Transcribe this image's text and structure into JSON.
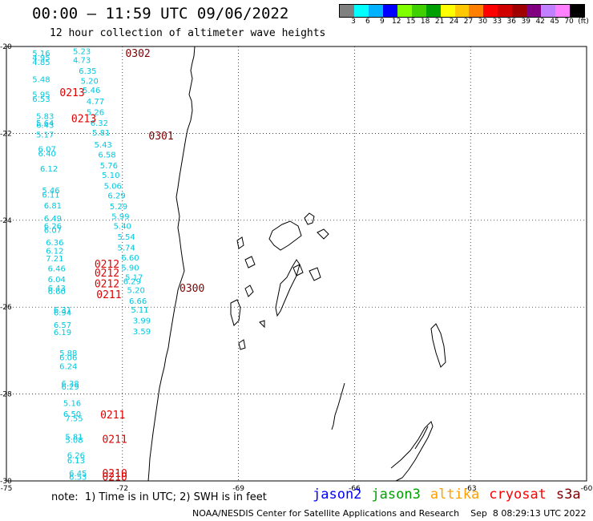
{
  "header": {
    "title": "00:00 – 11:59 UTC 09/06/2022",
    "subtitle": "12 hour collection of altimeter wave heights"
  },
  "colorbar": {
    "colors": [
      "#808080",
      "#00ffff",
      "#00b2ff",
      "#0000ff",
      "#80ff00",
      "#40d000",
      "#00a000",
      "#ffff00",
      "#ffc800",
      "#ff8000",
      "#ff0000",
      "#d00000",
      "#a00000",
      "#800080",
      "#c080ff",
      "#ff80ff",
      "#000000"
    ],
    "labels": [
      "3",
      "6",
      "9",
      "12",
      "15",
      "18",
      "21",
      "24",
      "27",
      "30",
      "33",
      "36",
      "39",
      "42",
      "45",
      "70"
    ],
    "unit": "(ft)"
  },
  "map": {
    "lon_range": [
      -75,
      -60
    ],
    "lat_range": [
      -30,
      -20
    ],
    "x_ticks": [
      "-75",
      "-72",
      "-69",
      "-66",
      "-63",
      "-60"
    ],
    "y_ticks": [
      "-20",
      "-22",
      "-24",
      "-26",
      "-28",
      "-30"
    ],
    "grid": "dotted",
    "wave_heights": [
      {
        "lat": -20.1,
        "lon": -73.05,
        "label": "5.23"
      },
      {
        "lat": -20.3,
        "lon": -73.05,
        "label": "4.73"
      },
      {
        "lat": -20.55,
        "lon": -72.9,
        "label": "6.35"
      },
      {
        "lat": -20.78,
        "lon": -72.85,
        "label": "5.20"
      },
      {
        "lat": -21.0,
        "lon": -72.8,
        "label": "5.46"
      },
      {
        "lat": -21.25,
        "lon": -72.7,
        "label": "4.77"
      },
      {
        "lat": -21.5,
        "lon": -72.7,
        "label": "5.26"
      },
      {
        "lat": -21.75,
        "lon": -72.6,
        "label": "6.32"
      },
      {
        "lat": -21.97,
        "lon": -72.55,
        "label": "5.81"
      },
      {
        "lat": -22.25,
        "lon": -72.5,
        "label": "5.43"
      },
      {
        "lat": -22.48,
        "lon": -72.4,
        "label": "6.58"
      },
      {
        "lat": -22.73,
        "lon": -72.35,
        "label": "5.76"
      },
      {
        "lat": -22.95,
        "lon": -72.3,
        "label": "5.10"
      },
      {
        "lat": -23.2,
        "lon": -72.25,
        "label": "5.06"
      },
      {
        "lat": -23.42,
        "lon": -72.15,
        "label": "6.29"
      },
      {
        "lat": -23.67,
        "lon": -72.1,
        "label": "5.29"
      },
      {
        "lat": -23.9,
        "lon": -72.05,
        "label": "5.99"
      },
      {
        "lat": -24.12,
        "lon": -72.0,
        "label": "5.40"
      },
      {
        "lat": -24.37,
        "lon": -71.9,
        "label": "5.54"
      },
      {
        "lat": -24.62,
        "lon": -71.9,
        "label": "5.74"
      },
      {
        "lat": -24.85,
        "lon": -71.8,
        "label": "6.60"
      },
      {
        "lat": -25.08,
        "lon": -71.8,
        "label": "5.90"
      },
      {
        "lat": -25.3,
        "lon": -71.7,
        "label": "5.17"
      },
      {
        "lat": -25.4,
        "lon": -71.75,
        "label": "6.29"
      },
      {
        "lat": -25.6,
        "lon": -71.65,
        "label": "5.20"
      },
      {
        "lat": -25.85,
        "lon": -71.6,
        "label": "6.66"
      },
      {
        "lat": -26.05,
        "lon": -71.55,
        "label": "5.11"
      },
      {
        "lat": -26.3,
        "lon": -71.5,
        "label": "3.99"
      },
      {
        "lat": -26.55,
        "lon": -71.5,
        "label": "3.59"
      },
      {
        "lat": -20.15,
        "lon": -74.1,
        "label": "5.16"
      },
      {
        "lat": -20.25,
        "lon": -74.1,
        "label": "4.95"
      },
      {
        "lat": -20.35,
        "lon": -74.1,
        "label": "4.85"
      },
      {
        "lat": -20.75,
        "lon": -74.1,
        "label": "5.48"
      },
      {
        "lat": -21.1,
        "lon": -74.1,
        "label": "5.95"
      },
      {
        "lat": -21.2,
        "lon": -74.1,
        "label": "6.53"
      },
      {
        "lat": -21.6,
        "lon": -74.0,
        "label": "5.83"
      },
      {
        "lat": -21.75,
        "lon": -74.0,
        "label": "5.64"
      },
      {
        "lat": -21.8,
        "lon": -74.0,
        "label": "6.43"
      },
      {
        "lat": -22.02,
        "lon": -74.0,
        "label": "5.17"
      },
      {
        "lat": -22.35,
        "lon": -73.95,
        "label": "6.07"
      },
      {
        "lat": -22.45,
        "lon": -73.95,
        "label": "6.40"
      },
      {
        "lat": -22.8,
        "lon": -73.9,
        "label": "6.12"
      },
      {
        "lat": -23.3,
        "lon": -73.85,
        "label": "5.46"
      },
      {
        "lat": -23.4,
        "lon": -73.85,
        "label": "6.11"
      },
      {
        "lat": -23.65,
        "lon": -73.8,
        "label": "6.81"
      },
      {
        "lat": -23.95,
        "lon": -73.8,
        "label": "6.49"
      },
      {
        "lat": -24.12,
        "lon": -73.8,
        "label": "6.26"
      },
      {
        "lat": -24.22,
        "lon": -73.8,
        "label": "6.07"
      },
      {
        "lat": -24.5,
        "lon": -73.75,
        "label": "6.36"
      },
      {
        "lat": -24.7,
        "lon": -73.75,
        "label": "6.12"
      },
      {
        "lat": -24.87,
        "lon": -73.75,
        "label": "7.21"
      },
      {
        "lat": -25.1,
        "lon": -73.7,
        "label": "6.46"
      },
      {
        "lat": -25.35,
        "lon": -73.7,
        "label": "6.04"
      },
      {
        "lat": -25.55,
        "lon": -73.7,
        "label": "6.43"
      },
      {
        "lat": -25.63,
        "lon": -73.7,
        "label": "6.60"
      },
      {
        "lat": -26.12,
        "lon": -73.55,
        "label": "6.94"
      },
      {
        "lat": -26.05,
        "lon": -73.55,
        "label": "6.31"
      },
      {
        "lat": -26.4,
        "lon": -73.55,
        "label": "6.57"
      },
      {
        "lat": -26.57,
        "lon": -73.55,
        "label": "6.19"
      },
      {
        "lat": -27.05,
        "lon": -73.4,
        "label": "5.88"
      },
      {
        "lat": -27.15,
        "lon": -73.4,
        "label": "6.06"
      },
      {
        "lat": -27.35,
        "lon": -73.4,
        "label": "6.24"
      },
      {
        "lat": -27.75,
        "lon": -73.35,
        "label": "6.38"
      },
      {
        "lat": -27.82,
        "lon": -73.35,
        "label": "6.29"
      },
      {
        "lat": -28.2,
        "lon": -73.3,
        "label": "5.16"
      },
      {
        "lat": -28.45,
        "lon": -73.3,
        "label": "6.50"
      },
      {
        "lat": -28.55,
        "lon": -73.25,
        "label": "7.55"
      },
      {
        "lat": -28.98,
        "lon": -73.25,
        "label": "5.81"
      },
      {
        "lat": -29.05,
        "lon": -73.25,
        "label": "5.08"
      },
      {
        "lat": -29.4,
        "lon": -73.2,
        "label": "6.26"
      },
      {
        "lat": -29.52,
        "lon": -73.2,
        "label": "6.13"
      },
      {
        "lat": -29.82,
        "lon": -73.15,
        "label": "6.45"
      },
      {
        "lat": -29.9,
        "lon": -73.15,
        "label": "6.53"
      }
    ],
    "pass_times": [
      {
        "lat": -20.15,
        "lon": -71.6,
        "label": "0302",
        "color": "#800000"
      },
      {
        "lat": -21.05,
        "lon": -73.3,
        "label": "0213",
        "color": "#e00000"
      },
      {
        "lat": -21.65,
        "lon": -73.0,
        "label": "0213",
        "color": "#e00000"
      },
      {
        "lat": -22.05,
        "lon": -71.0,
        "label": "0301",
        "color": "#800000"
      },
      {
        "lat": -25.0,
        "lon": -72.4,
        "label": "0212",
        "color": "#e00000"
      },
      {
        "lat": -25.2,
        "lon": -72.4,
        "label": "0212",
        "color": "#e00000"
      },
      {
        "lat": -25.45,
        "lon": -72.4,
        "label": "0212",
        "color": "#e00000"
      },
      {
        "lat": -25.55,
        "lon": -70.2,
        "label": "0300",
        "color": "#800000"
      },
      {
        "lat": -25.7,
        "lon": -72.35,
        "label": "0211",
        "color": "#e00000"
      },
      {
        "lat": -28.47,
        "lon": -72.25,
        "label": "0211",
        "color": "#e00000"
      },
      {
        "lat": -29.03,
        "lon": -72.2,
        "label": "0211",
        "color": "#e00000"
      },
      {
        "lat": -29.82,
        "lon": -72.2,
        "label": "0210",
        "color": "#e00000"
      },
      {
        "lat": -29.9,
        "lon": -72.2,
        "label": "0210",
        "color": "#e00000"
      }
    ]
  },
  "footer": {
    "note": "note:  1) Time is in UTC; 2) SWH is in feet",
    "satellites": [
      {
        "name": "jason2",
        "color": "#0000ff"
      },
      {
        "name": "jason3",
        "color": "#00a000"
      },
      {
        "name": "altika",
        "color": "#ffa000"
      },
      {
        "name": "cryosat",
        "color": "#ff0000"
      },
      {
        "name": "s3a",
        "color": "#800000"
      }
    ],
    "credit": "NOAA/NESDIS Center for Satellite Applications and Research    Sep  8 08:29:13 UTC 2022"
  }
}
